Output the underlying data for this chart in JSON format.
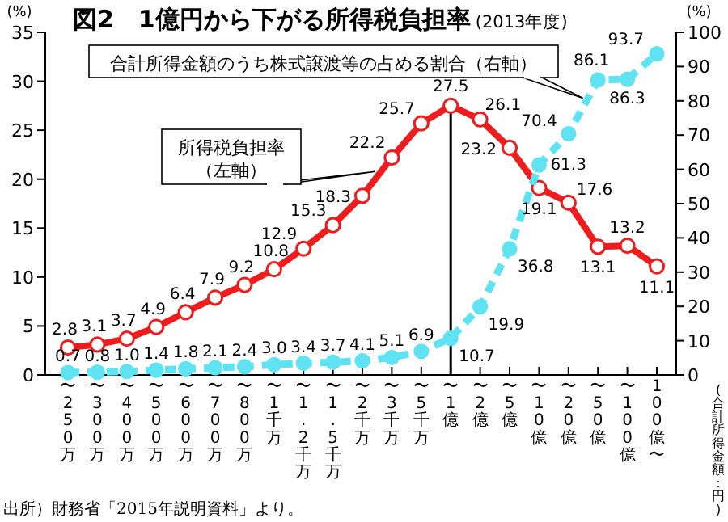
{
  "chart_data": {
    "type": "line",
    "title": "図2　1億円から下がる所得税負担率",
    "subtitle": "(2013年度)",
    "xlabel": "(合計所得金額：円)",
    "ylabel": "(%)",
    "y2label": "(%)",
    "categories": [
      "〜250万",
      "〜300万",
      "〜400万",
      "〜500万",
      "〜600万",
      "〜700万",
      "〜800万",
      "〜1千万",
      "〜1.2千万",
      "〜1.5千万",
      "〜2千万",
      "〜3千万",
      "〜5千万",
      "〜1億",
      "〜2億",
      "〜5億",
      "〜10億",
      "〜20億",
      "〜50億",
      "〜100億",
      "100億〜"
    ],
    "series": [
      {
        "name": "所得税負担率（左軸）",
        "color": "#ee1c1c",
        "line_style": "solid",
        "values": [
          2.8,
          3.1,
          3.7,
          4.9,
          6.4,
          7.9,
          9.2,
          10.8,
          12.9,
          15.3,
          18.3,
          22.2,
          25.7,
          27.5,
          26.1,
          23.2,
          19.1,
          17.6,
          13.1,
          13.2,
          11.1
        ],
        "value_labels": [
          "2.8",
          "3.1",
          "3.7",
          "4.9",
          "6.4",
          "7.9",
          "9.2",
          "10.8",
          "12.9",
          "15.3",
          "18.3",
          "22.2",
          "25.7",
          "27.5",
          "26.1",
          "23.2",
          "19.1",
          "17.6",
          "13.1",
          "13.2",
          "11.1"
        ]
      },
      {
        "name": "合計所得金額のうち株式譲渡等の占める割合（右軸）",
        "color": "#5fe3f2",
        "axis": "y2",
        "line_style": "dashed",
        "values": [
          0.7,
          0.8,
          1.0,
          1.4,
          1.8,
          2.1,
          2.4,
          3.0,
          3.4,
          3.7,
          4.1,
          5.1,
          6.9,
          10.7,
          19.9,
          36.8,
          61.3,
          70.4,
          86.1,
          86.3,
          93.7
        ],
        "value_labels": [
          "0.7",
          "0.8",
          "1.0",
          "1.4",
          "1.8",
          "2.1",
          "2.4",
          "3.0",
          "3.4",
          "3.7",
          "4.1",
          "5.1",
          "6.9",
          "10.7",
          "19.9",
          "36.8",
          "61.3",
          "70.4",
          "86.1",
          "86.3",
          "93.7"
        ]
      }
    ],
    "ylim": [
      0,
      35
    ],
    "yticks": [
      0,
      5,
      10,
      15,
      20,
      25,
      30,
      35
    ],
    "y2lim": [
      0,
      100
    ],
    "y2ticks": [
      0,
      10,
      20,
      30,
      40,
      50,
      60,
      70,
      80,
      90,
      100
    ],
    "ref_lines": [
      {
        "axis": "x",
        "value": "〜1億",
        "color": "#000000"
      }
    ],
    "marker": "circle",
    "grid": false,
    "annotations": [
      "出所）財務省「2015年説明資料」より。"
    ]
  }
}
